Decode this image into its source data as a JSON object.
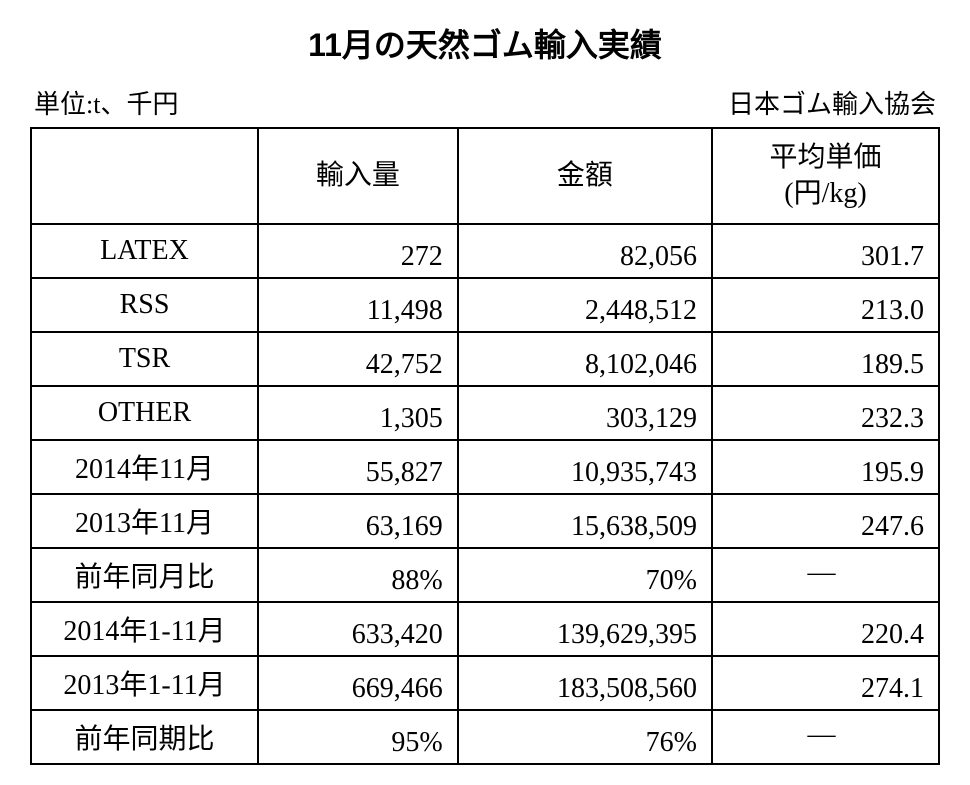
{
  "title": "11月の天然ゴム輸入実績",
  "unit_label": "単位:t、千円",
  "source_label": "日本ゴム輸入協会",
  "columns": {
    "c0": "",
    "c1": "輸入量",
    "c2": "金額",
    "c3": "平均単価\n(円/kg)"
  },
  "rows": [
    {
      "label": "LATEX",
      "import": "272",
      "amount": "82,056",
      "unit_price": "301.7"
    },
    {
      "label": "RSS",
      "import": "11,498",
      "amount": "2,448,512",
      "unit_price": "213.0"
    },
    {
      "label": "TSR",
      "import": "42,752",
      "amount": "8,102,046",
      "unit_price": "189.5"
    },
    {
      "label": "OTHER",
      "import": "1,305",
      "amount": "303,129",
      "unit_price": "232.3"
    },
    {
      "label": "2014年11月",
      "import": "55,827",
      "amount": "10,935,743",
      "unit_price": "195.9"
    },
    {
      "label": "2013年11月",
      "import": "63,169",
      "amount": "15,638,509",
      "unit_price": "247.6"
    },
    {
      "label": "前年同月比",
      "import": "88%",
      "amount": "70%",
      "unit_price": "—",
      "dash": true
    },
    {
      "label": "2014年1-11月",
      "import": "633,420",
      "amount": "139,629,395",
      "unit_price": "220.4"
    },
    {
      "label": "2013年1-11月",
      "import": "669,466",
      "amount": "183,508,560",
      "unit_price": "274.1"
    },
    {
      "label": "前年同期比",
      "import": "95%",
      "amount": "76%",
      "unit_price": "—",
      "dash": true
    }
  ],
  "style": {
    "background": "#ffffff",
    "text_color": "#000000",
    "border_color": "#000000",
    "title_fontsize": 32,
    "cell_fontsize": 28,
    "subheader_fontsize": 26,
    "header_row_height": 96,
    "data_row_height": 54,
    "col_widths_pct": [
      25,
      22,
      28,
      25
    ]
  }
}
